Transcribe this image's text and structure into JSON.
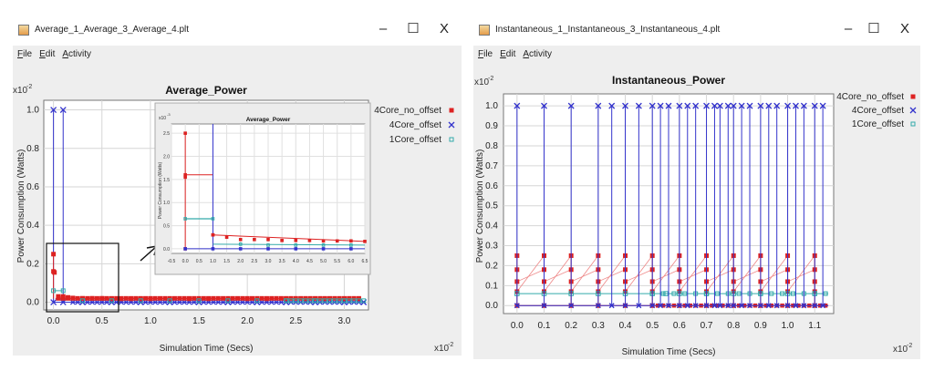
{
  "windows": [
    {
      "title": "Average_1_Average_3_Average_4.plt",
      "menu": [
        "File",
        "Edit",
        "Activity"
      ],
      "controls": {
        "minimize": "–",
        "maximize": "☐",
        "close": "X"
      }
    },
    {
      "title": "Instantaneous_1_Instantaneous_3_Instantaneous_4.plt",
      "menu": [
        "File",
        "Edit",
        "Activity"
      ],
      "controls": {
        "minimize": "–",
        "maximize": "☐",
        "close": "X"
      }
    }
  ],
  "colors": {
    "series_red": "#dd2222",
    "series_blue": "#3333cc",
    "series_cyan": "#33aaaa",
    "grid": "#d6d6d6"
  },
  "chart_data": [
    {
      "type": "scatter",
      "title": "Average_Power",
      "xlabel": "Simulation Time (Secs)",
      "ylabel": "Power Consumption (Watts)",
      "y_multiplier": "x10",
      "y_multiplier_exp": "-2",
      "x_multiplier": "x10",
      "x_multiplier_exp": "-2",
      "xlim": [
        -0.1,
        3.25
      ],
      "ylim": [
        -0.04,
        1.05
      ],
      "xticks": [
        "0.0",
        "0.5",
        "1.0",
        "1.5",
        "2.0",
        "2.5",
        "3.0"
      ],
      "yticks": [
        "0.0",
        "0.2",
        "0.4",
        "0.6",
        "0.8",
        "1.0"
      ],
      "legend": [
        "4Core_no_offset",
        "4Core_offset",
        "1Core_offset"
      ],
      "legend_markers": [
        "■",
        "x",
        "□"
      ],
      "series": [
        {
          "name": "4Core_no_offset",
          "color": "#dd2222",
          "marker": "square",
          "x": [
            0.0,
            0.0,
            0.01,
            0.05,
            0.1,
            0.15,
            0.2,
            0.3,
            0.4,
            0.5,
            0.6,
            0.7,
            0.8,
            0.9,
            1.0,
            1.2,
            1.4,
            1.6,
            1.8,
            2.0,
            2.2,
            2.4,
            2.6,
            2.8,
            3.0,
            3.15
          ],
          "y": [
            0.25,
            0.16,
            0.155,
            0.03,
            0.03,
            0.025,
            0.022,
            0.02,
            0.02,
            0.02,
            0.018,
            0.018,
            0.018,
            0.018,
            0.018,
            0.018,
            0.018,
            0.018,
            0.018,
            0.018,
            0.018,
            0.018,
            0.018,
            0.018,
            0.018,
            0.018
          ]
        },
        {
          "name": "4Core_offset",
          "color": "#3333cc",
          "marker": "x",
          "x": [
            0.0,
            0.1,
            0.0,
            0.1,
            0.3,
            0.6,
            0.9,
            1.2,
            1.5,
            1.8,
            2.1,
            2.4,
            2.7,
            3.0,
            3.2
          ],
          "y": [
            1.0,
            1.0,
            0.0,
            0.0,
            0.0,
            0.0,
            0.0,
            0.0,
            0.0,
            0.0,
            0.0,
            0.0,
            0.0,
            0.0,
            0.0
          ]
        },
        {
          "name": "1Core_offset",
          "color": "#33aaaa",
          "marker": "square-open",
          "x": [
            0.0,
            0.1,
            0.3,
            0.6,
            0.9,
            1.2,
            1.5,
            1.8,
            2.1,
            2.4,
            2.7,
            3.0
          ],
          "y": [
            0.06,
            0.06,
            0.008,
            0.008,
            0.008,
            0.008,
            0.008,
            0.008,
            0.008,
            0.008,
            0.008,
            0.008
          ]
        }
      ],
      "inset": {
        "title": "Average_Power",
        "y_multiplier": "x10",
        "y_multiplier_exp": "-3",
        "ylabel": "Power Consumption (Watts)",
        "xlim": [
          -0.5,
          6.5
        ],
        "ylim": [
          -0.1,
          2.7
        ],
        "xticks": [
          "-0.5",
          "0.0",
          "0.5",
          "1.0",
          "1.5",
          "2.0",
          "2.5",
          "3.0",
          "3.5",
          "4.0",
          "4.5",
          "5.0",
          "5.5",
          "6.0",
          "6.5"
        ],
        "yticks": [
          "0.0",
          "0.5",
          "1.0",
          "1.5",
          "2.0",
          "2.5"
        ],
        "red_x": [
          0.0,
          0.0,
          0.0,
          0.0,
          1.0,
          1.0,
          1.5,
          2.0,
          2.5,
          3.0,
          3.5,
          4.0,
          4.5,
          5.0,
          5.5,
          6.0,
          6.5
        ],
        "red_y": [
          2.5,
          1.55,
          1.6,
          0.0,
          0.3,
          0.3,
          0.25,
          0.2,
          0.2,
          0.2,
          0.18,
          0.18,
          0.18,
          0.17,
          0.17,
          0.17,
          0.16
        ],
        "blue_x": [
          0.0,
          1.0,
          2.0,
          3.0,
          4.0,
          5.0,
          6.0
        ],
        "blue_y": [
          0.0,
          0.0,
          0.0,
          0.0,
          0.0,
          0.0,
          0.0
        ],
        "cyan_x": [
          0.0,
          1.0,
          2.0,
          3.0,
          4.0,
          5.0,
          6.0
        ],
        "cyan_y": [
          0.65,
          0.65,
          0.1,
          0.08,
          0.08,
          0.08,
          0.08
        ]
      }
    },
    {
      "type": "scatter",
      "title": "Instantaneous_Power",
      "xlabel": "Simulation Time (Secs)",
      "ylabel": "Power Consumption (Watts)",
      "y_multiplier": "x10",
      "y_multiplier_exp": "-2",
      "x_multiplier": "x10",
      "x_multiplier_exp": "-2",
      "xlim": [
        -0.05,
        1.17
      ],
      "ylim": [
        -0.04,
        1.06
      ],
      "xticks": [
        "0.0",
        "0.1",
        "0.2",
        "0.3",
        "0.4",
        "0.5",
        "0.6",
        "0.7",
        "0.8",
        "0.9",
        "1.0",
        "1.1"
      ],
      "yticks": [
        "0.0",
        "0.1",
        "0.2",
        "0.3",
        "0.4",
        "0.5",
        "0.6",
        "0.7",
        "0.8",
        "0.9",
        "1.0"
      ],
      "legend": [
        "4Core_no_offset",
        "4Core_offset",
        "1Core_offset"
      ],
      "legend_markers": [
        "■",
        "x",
        "□"
      ],
      "series": [
        {
          "name": "4Core_offset",
          "color": "#3333cc",
          "marker": "x",
          "x": [
            0.0,
            0.1,
            0.2,
            0.3,
            0.35,
            0.4,
            0.45,
            0.5,
            0.53,
            0.56,
            0.6,
            0.63,
            0.66,
            0.7,
            0.73,
            0.75,
            0.78,
            0.8,
            0.83,
            0.86,
            0.9,
            0.93,
            0.96,
            1.0,
            1.03,
            1.06,
            1.1,
            1.13
          ],
          "y": [
            1.0,
            1.0,
            1.0,
            1.0,
            1.0,
            1.0,
            1.0,
            1.0,
            1.0,
            1.0,
            1.0,
            1.0,
            1.0,
            1.0,
            1.0,
            1.0,
            1.0,
            1.0,
            1.0,
            1.0,
            1.0,
            1.0,
            1.0,
            1.0,
            1.0,
            1.0,
            1.0,
            1.0
          ]
        },
        {
          "name": "4Core_no_offset",
          "color": "#dd2222",
          "marker": "square",
          "x": [
            0.0,
            0.1,
            0.2,
            0.3,
            0.4,
            0.5,
            0.6,
            0.7,
            0.8,
            0.9,
            1.0,
            1.1
          ],
          "y": [
            0.25,
            0.25,
            0.25,
            0.25,
            0.25,
            0.25,
            0.25,
            0.25,
            0.25,
            0.25,
            0.25,
            0.25
          ]
        },
        {
          "name": "1Core_offset",
          "color": "#33aaaa",
          "marker": "square-open",
          "x": [
            0.0,
            0.1,
            0.2,
            0.3,
            0.4,
            0.5,
            0.6,
            0.7,
            0.8,
            0.9,
            1.0,
            1.1
          ],
          "y": [
            0.06,
            0.06,
            0.06,
            0.06,
            0.06,
            0.06,
            0.06,
            0.06,
            0.06,
            0.06,
            0.06,
            0.06
          ]
        }
      ],
      "red_levels": [
        0.25,
        0.18,
        0.12,
        0.07,
        0.0
      ],
      "red_top_times": [
        0.0,
        0.1,
        0.2,
        0.3,
        0.4,
        0.5,
        0.6,
        0.7,
        0.8,
        0.9,
        1.0,
        1.1
      ],
      "cyan_times": [
        0.0,
        0.1,
        0.2,
        0.3,
        0.4,
        0.5,
        0.55,
        0.6,
        0.7,
        0.8,
        0.9,
        1.0,
        1.1
      ]
    }
  ]
}
